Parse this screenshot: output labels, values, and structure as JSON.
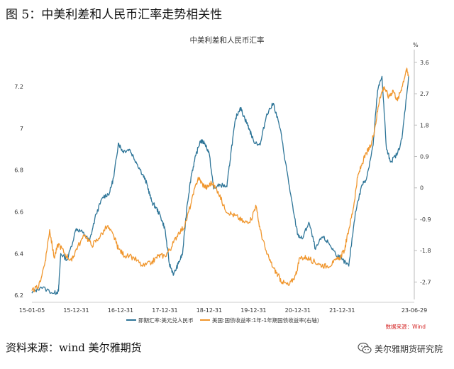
{
  "figure": {
    "heading": "图 5：中美利差和人民币汇率走势相关性",
    "source": "资料来源：wind 美尔雅期货",
    "watermark": "美尔雅期货研究院",
    "watermark_icon": "wechat-icon"
  },
  "chart_data": {
    "type": "line",
    "title": "中美利差和人民币汇率",
    "y_left": {
      "ticks": [
        "6.2",
        "6.4",
        "6.6",
        "6.8",
        "7",
        "7.2"
      ],
      "range": [
        6.18,
        7.35
      ]
    },
    "y_right": {
      "unit": "%",
      "ticks": [
        "-2.7",
        "-1.8",
        "-0.9",
        "0",
        "0.9",
        "1.8",
        "2.7",
        "3.6"
      ],
      "range": [
        -3.2,
        3.8
      ]
    },
    "x_ticks": [
      "15-01-05",
      "15-12-31",
      "16-12-31",
      "17-12-31",
      "18-12-31",
      "19-12-31",
      "20-12-31",
      "21-12-31",
      "23-06-29"
    ],
    "x_range": [
      2015.0,
      2023.5
    ],
    "source_note": "数据来源：Wind",
    "series": [
      {
        "name": "即期汇率:美元兑人民币",
        "axis": "left",
        "color": "#2e7598",
        "points": [
          [
            2015.0,
            6.21
          ],
          [
            2015.2,
            6.24
          ],
          [
            2015.5,
            6.21
          ],
          [
            2015.6,
            6.22
          ],
          [
            2015.65,
            6.4
          ],
          [
            2015.8,
            6.37
          ],
          [
            2016.0,
            6.52
          ],
          [
            2016.15,
            6.5
          ],
          [
            2016.3,
            6.46
          ],
          [
            2016.45,
            6.59
          ],
          [
            2016.6,
            6.67
          ],
          [
            2016.75,
            6.69
          ],
          [
            2016.85,
            6.77
          ],
          [
            2016.95,
            6.93
          ],
          [
            2017.05,
            6.89
          ],
          [
            2017.2,
            6.9
          ],
          [
            2017.35,
            6.84
          ],
          [
            2017.5,
            6.78
          ],
          [
            2017.6,
            6.73
          ],
          [
            2017.7,
            6.65
          ],
          [
            2017.8,
            6.62
          ],
          [
            2017.9,
            6.58
          ],
          [
            2018.0,
            6.52
          ],
          [
            2018.1,
            6.35
          ],
          [
            2018.2,
            6.3
          ],
          [
            2018.3,
            6.35
          ],
          [
            2018.4,
            6.4
          ],
          [
            2018.5,
            6.63
          ],
          [
            2018.6,
            6.78
          ],
          [
            2018.7,
            6.87
          ],
          [
            2018.8,
            6.94
          ],
          [
            2018.9,
            6.93
          ],
          [
            2019.0,
            6.88
          ],
          [
            2019.1,
            6.71
          ],
          [
            2019.25,
            6.73
          ],
          [
            2019.4,
            6.72
          ],
          [
            2019.5,
            6.9
          ],
          [
            2019.6,
            7.05
          ],
          [
            2019.7,
            7.1
          ],
          [
            2019.8,
            7.05
          ],
          [
            2019.9,
            7.0
          ],
          [
            2020.0,
            6.94
          ],
          [
            2020.15,
            6.92
          ],
          [
            2020.3,
            7.07
          ],
          [
            2020.45,
            7.12
          ],
          [
            2020.6,
            7.0
          ],
          [
            2020.75,
            6.8
          ],
          [
            2020.9,
            6.6
          ],
          [
            2021.0,
            6.49
          ],
          [
            2021.1,
            6.47
          ],
          [
            2021.25,
            6.55
          ],
          [
            2021.4,
            6.42
          ],
          [
            2021.55,
            6.48
          ],
          [
            2021.7,
            6.45
          ],
          [
            2021.85,
            6.4
          ],
          [
            2022.0,
            6.37
          ],
          [
            2022.15,
            6.34
          ],
          [
            2022.3,
            6.6
          ],
          [
            2022.45,
            6.73
          ],
          [
            2022.55,
            6.76
          ],
          [
            2022.7,
            6.92
          ],
          [
            2022.8,
            7.18
          ],
          [
            2022.9,
            7.25
          ],
          [
            2023.0,
            6.9
          ],
          [
            2023.1,
            6.84
          ],
          [
            2023.25,
            6.88
          ],
          [
            2023.35,
            6.95
          ],
          [
            2023.5,
            7.25
          ]
        ]
      },
      {
        "name": "美国:国债收益率:1年-1年期国债收益率(右轴)",
        "axis": "right",
        "color": "#f0962d",
        "points": [
          [
            2015.0,
            -2.95
          ],
          [
            2015.15,
            -2.85
          ],
          [
            2015.3,
            -2.1
          ],
          [
            2015.4,
            -1.2
          ],
          [
            2015.5,
            -2.0
          ],
          [
            2015.6,
            -1.6
          ],
          [
            2015.75,
            -1.9
          ],
          [
            2015.9,
            -2.1
          ],
          [
            2016.0,
            -1.75
          ],
          [
            2016.2,
            -1.35
          ],
          [
            2016.35,
            -1.65
          ],
          [
            2016.5,
            -1.45
          ],
          [
            2016.7,
            -1.1
          ],
          [
            2016.85,
            -1.4
          ],
          [
            2016.95,
            -1.75
          ],
          [
            2017.1,
            -1.95
          ],
          [
            2017.3,
            -2.0
          ],
          [
            2017.5,
            -2.25
          ],
          [
            2017.7,
            -2.15
          ],
          [
            2017.85,
            -1.95
          ],
          [
            2018.0,
            -1.95
          ],
          [
            2018.15,
            -1.7
          ],
          [
            2018.3,
            -1.3
          ],
          [
            2018.45,
            -1.1
          ],
          [
            2018.6,
            -0.4
          ],
          [
            2018.75,
            0.3
          ],
          [
            2018.85,
            0.1
          ],
          [
            2018.95,
            0.0
          ],
          [
            2019.05,
            0.15
          ],
          [
            2019.2,
            -0.1
          ],
          [
            2019.35,
            -0.6
          ],
          [
            2019.5,
            -0.75
          ],
          [
            2019.65,
            -0.85
          ],
          [
            2019.8,
            -1.0
          ],
          [
            2019.95,
            -0.9
          ],
          [
            2020.05,
            -0.5
          ],
          [
            2020.15,
            -1.2
          ],
          [
            2020.3,
            -1.9
          ],
          [
            2020.45,
            -2.3
          ],
          [
            2020.55,
            -2.5
          ],
          [
            2020.65,
            -2.7
          ],
          [
            2020.8,
            -2.8
          ],
          [
            2020.95,
            -2.5
          ],
          [
            2021.05,
            -2.0
          ],
          [
            2021.2,
            -2.0
          ],
          [
            2021.35,
            -2.1
          ],
          [
            2021.5,
            -2.2
          ],
          [
            2021.65,
            -2.25
          ],
          [
            2021.8,
            -2.15
          ],
          [
            2021.95,
            -2.0
          ],
          [
            2022.05,
            -1.8
          ],
          [
            2022.15,
            -1.2
          ],
          [
            2022.25,
            -0.6
          ],
          [
            2022.35,
            0.3
          ],
          [
            2022.45,
            0.7
          ],
          [
            2022.55,
            1.0
          ],
          [
            2022.65,
            1.2
          ],
          [
            2022.75,
            1.8
          ],
          [
            2022.85,
            2.6
          ],
          [
            2022.95,
            2.9
          ],
          [
            2023.05,
            2.6
          ],
          [
            2023.15,
            2.8
          ],
          [
            2023.25,
            2.5
          ],
          [
            2023.35,
            2.9
          ],
          [
            2023.45,
            3.4
          ],
          [
            2023.5,
            3.2
          ]
        ]
      }
    ]
  }
}
